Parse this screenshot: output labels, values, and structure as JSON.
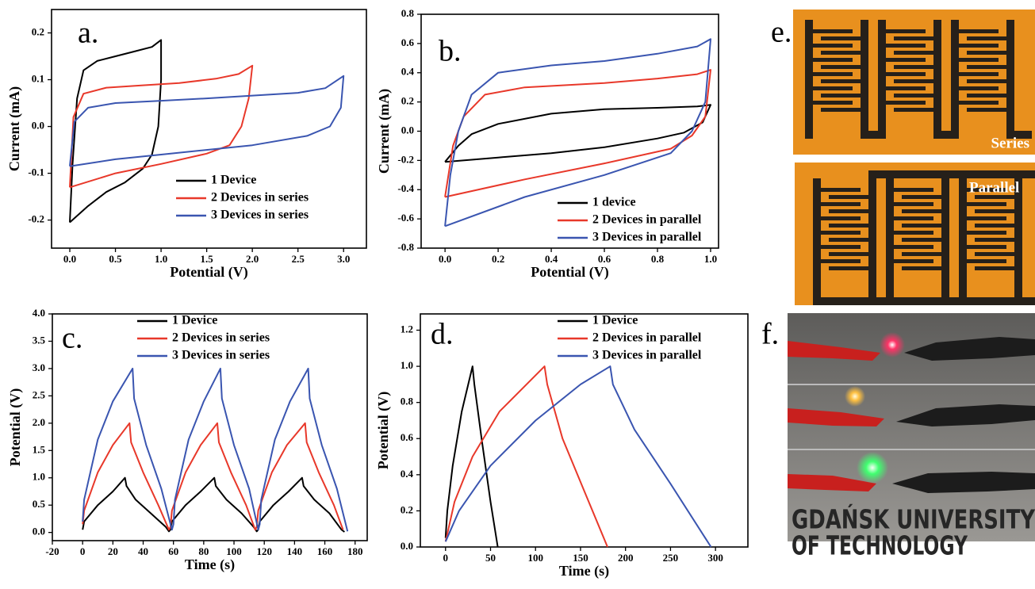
{
  "chart_data": [
    {
      "type": "line",
      "panel_label": "a.",
      "xlabel": "Potential (V)",
      "ylabel": "Current (mA)",
      "xlim": [
        -0.2,
        3.25
      ],
      "ylim": [
        -0.26,
        0.25
      ],
      "xticks": [
        {
          "value": 0,
          "label": "0.0"
        },
        0.5,
        {
          "value": 1,
          "label": "1.0"
        },
        1.5,
        {
          "value": 2,
          "label": "2.0"
        },
        2.5,
        {
          "value": 3,
          "label": "3.0"
        }
      ],
      "yticks": [
        -0.2,
        -0.1,
        {
          "value": 0,
          "label": "0.0"
        },
        0.1,
        0.2
      ],
      "legend": "lower right",
      "series": [
        {
          "name": "1 Device",
          "color": "#000000",
          "x": [
            0,
            0.03,
            0.08,
            0.15,
            0.3,
            0.5,
            0.7,
            0.9,
            1.0,
            1.0,
            0.97,
            0.9,
            0.8,
            0.6,
            0.4,
            0.2,
            0
          ],
          "values": [
            -0.205,
            -0.08,
            0.06,
            0.12,
            0.14,
            0.15,
            0.16,
            0.17,
            0.185,
            0.1,
            0.0,
            -0.06,
            -0.09,
            -0.12,
            -0.14,
            -0.17,
            -0.205
          ]
        },
        {
          "name": "2 Devices in series",
          "color": "#e8382a",
          "x": [
            0,
            0.04,
            0.15,
            0.4,
            0.8,
            1.2,
            1.6,
            1.85,
            2.0,
            1.96,
            1.88,
            1.75,
            1.5,
            1.0,
            0.5,
            0
          ],
          "values": [
            -0.13,
            0.02,
            0.07,
            0.083,
            0.088,
            0.093,
            0.102,
            0.112,
            0.13,
            0.06,
            0.0,
            -0.04,
            -0.058,
            -0.08,
            -0.1,
            -0.13
          ]
        },
        {
          "name": "3 Devices in series",
          "color": "#3a55b0",
          "x": [
            0,
            0.05,
            0.2,
            0.5,
            1.0,
            1.5,
            2.0,
            2.5,
            2.8,
            3.0,
            2.97,
            2.85,
            2.6,
            2.0,
            1.0,
            0.5,
            0
          ],
          "values": [
            -0.085,
            0.01,
            0.04,
            0.05,
            0.055,
            0.06,
            0.066,
            0.072,
            0.082,
            0.108,
            0.04,
            0.0,
            -0.02,
            -0.04,
            -0.06,
            -0.07,
            -0.085
          ]
        }
      ]
    },
    {
      "type": "line",
      "panel_label": "b.",
      "xlabel": "Potential (V)",
      "ylabel": "Current (mA)",
      "xlim": [
        -0.09,
        1.03
      ],
      "ylim": [
        -0.8,
        0.8
      ],
      "xticks": [
        {
          "value": 0,
          "label": "0.0"
        },
        0.2,
        0.4,
        0.6,
        0.8,
        {
          "value": 1,
          "label": "1.0"
        }
      ],
      "yticks": [
        -0.8,
        -0.6,
        -0.4,
        -0.2,
        {
          "value": 0,
          "label": "0.0"
        },
        0.2,
        0.4,
        0.6,
        0.8
      ],
      "legend": "lower right",
      "series": [
        {
          "name": "1 device",
          "color": "#000000",
          "x": [
            0,
            0.05,
            0.1,
            0.2,
            0.4,
            0.6,
            0.8,
            0.95,
            1.0,
            0.97,
            0.9,
            0.8,
            0.6,
            0.4,
            0.2,
            0
          ],
          "values": [
            -0.21,
            -0.1,
            -0.02,
            0.05,
            0.12,
            0.15,
            0.16,
            0.17,
            0.18,
            0.06,
            -0.01,
            -0.05,
            -0.11,
            -0.15,
            -0.18,
            -0.21
          ]
        },
        {
          "name": "2 Devices in parallel",
          "color": "#e8382a",
          "x": [
            0,
            0.03,
            0.07,
            0.15,
            0.3,
            0.6,
            0.8,
            0.95,
            1.0,
            0.98,
            0.93,
            0.85,
            0.6,
            0.3,
            0
          ],
          "values": [
            -0.45,
            -0.1,
            0.1,
            0.25,
            0.3,
            0.33,
            0.36,
            0.39,
            0.42,
            0.1,
            -0.03,
            -0.12,
            -0.22,
            -0.33,
            -0.45
          ]
        },
        {
          "name": "3 Devices in parallel",
          "color": "#3a55b0",
          "x": [
            0,
            0.02,
            0.05,
            0.1,
            0.2,
            0.4,
            0.6,
            0.8,
            0.95,
            1.0,
            0.98,
            0.93,
            0.85,
            0.6,
            0.3,
            0
          ],
          "values": [
            -0.65,
            -0.3,
            0.0,
            0.25,
            0.4,
            0.45,
            0.48,
            0.53,
            0.58,
            0.63,
            0.2,
            0.0,
            -0.15,
            -0.3,
            -0.45,
            -0.65
          ]
        }
      ]
    },
    {
      "type": "line",
      "panel_label": "c.",
      "xlabel": "Time (s)",
      "ylabel": "Potential (V)",
      "xlim": [
        -20,
        188
      ],
      "ylim": [
        -0.15,
        4.0
      ],
      "xticks": [
        -20,
        0,
        20,
        40,
        60,
        80,
        100,
        120,
        140,
        160,
        180
      ],
      "yticks": [
        {
          "value": 0,
          "label": "0.0"
        },
        0.5,
        {
          "value": 1,
          "label": "1.0"
        },
        1.5,
        {
          "value": 2,
          "label": "2.0"
        },
        2.5,
        {
          "value": 3,
          "label": "3.0"
        },
        3.5,
        {
          "value": 4,
          "label": "4.0"
        }
      ],
      "legend": "upper center",
      "series": [
        {
          "name": "1 Device",
          "color": "#000000",
          "x": [
            0,
            1,
            10,
            20,
            28,
            29,
            35,
            45,
            55,
            57,
            58,
            59,
            68,
            78,
            87,
            88,
            95,
            105,
            113,
            115,
            116,
            117,
            126,
            136,
            145,
            146,
            153,
            163,
            171,
            173
          ],
          "values": [
            0.05,
            0.2,
            0.5,
            0.75,
            1.0,
            0.85,
            0.6,
            0.35,
            0.1,
            0.02,
            0.05,
            0.2,
            0.5,
            0.75,
            1.0,
            0.85,
            0.6,
            0.35,
            0.1,
            0.02,
            0.05,
            0.2,
            0.5,
            0.75,
            1.0,
            0.85,
            0.6,
            0.35,
            0.05,
            0.01
          ]
        },
        {
          "name": "2 Devices in series",
          "color": "#e8382a",
          "x": [
            0,
            1,
            10,
            20,
            31,
            32,
            40,
            50,
            57,
            58,
            59,
            68,
            78,
            89,
            90,
            98,
            108,
            114,
            115,
            116,
            125,
            135,
            147,
            148,
            156,
            166,
            172
          ],
          "values": [
            0.15,
            0.4,
            1.1,
            1.6,
            2.0,
            1.65,
            1.1,
            0.5,
            0.05,
            0.1,
            0.4,
            1.1,
            1.6,
            2.0,
            1.65,
            1.1,
            0.5,
            0.05,
            0.1,
            0.4,
            1.1,
            1.6,
            2.0,
            1.65,
            1.1,
            0.5,
            0.05
          ]
        },
        {
          "name": "3 Devices in series",
          "color": "#3a55b0",
          "x": [
            0,
            1,
            10,
            20,
            33,
            34,
            42,
            52,
            59,
            60,
            61,
            70,
            80,
            91,
            92,
            100,
            110,
            116,
            117,
            118,
            127,
            137,
            149,
            150,
            158,
            168,
            175
          ],
          "values": [
            0.2,
            0.6,
            1.7,
            2.4,
            3.0,
            2.45,
            1.6,
            0.8,
            0.05,
            0.15,
            0.6,
            1.7,
            2.4,
            3.0,
            2.45,
            1.6,
            0.8,
            0.05,
            0.15,
            0.6,
            1.7,
            2.4,
            3.0,
            2.45,
            1.6,
            0.8,
            0.02
          ]
        }
      ]
    },
    {
      "type": "line",
      "panel_label": "d.",
      "xlabel": "Time (s)",
      "ylabel": "Potential (V)",
      "xlim": [
        -28,
        336
      ],
      "ylim": [
        0,
        1.29
      ],
      "xticks": [
        0,
        50,
        100,
        150,
        200,
        250,
        300
      ],
      "yticks": [
        {
          "value": 0,
          "label": "0.0"
        },
        0.2,
        0.4,
        0.6,
        0.8,
        {
          "value": 1,
          "label": "1.0"
        },
        1.2
      ],
      "legend": "upper right",
      "series": [
        {
          "name": "1 Device",
          "color": "#000000",
          "x": [
            0,
            2,
            8,
            18,
            30,
            32,
            40,
            50,
            58
          ],
          "values": [
            0.05,
            0.2,
            0.45,
            0.75,
            1.0,
            0.9,
            0.6,
            0.25,
            0.0
          ]
        },
        {
          "name": "2 Devices in parallel",
          "color": "#e8382a",
          "x": [
            0,
            10,
            30,
            60,
            110,
            113,
            130,
            155,
            180
          ],
          "values": [
            0.03,
            0.25,
            0.5,
            0.75,
            1.0,
            0.9,
            0.6,
            0.3,
            0.0
          ]
        },
        {
          "name": "3 Devices in parallel",
          "color": "#3a55b0",
          "x": [
            0,
            15,
            50,
            100,
            150,
            183,
            186,
            210,
            250,
            295
          ],
          "values": [
            0.03,
            0.2,
            0.45,
            0.7,
            0.9,
            1.0,
            0.9,
            0.65,
            0.35,
            0.0
          ]
        }
      ]
    }
  ],
  "photos": {
    "e": {
      "label": "e.",
      "top_caption": "Series",
      "bottom_caption": "Parallel"
    },
    "f": {
      "label": "f.",
      "lines": [
        "GDAŃSK UNIVERSITY",
        "OF TECHNOLOGY"
      ]
    }
  }
}
